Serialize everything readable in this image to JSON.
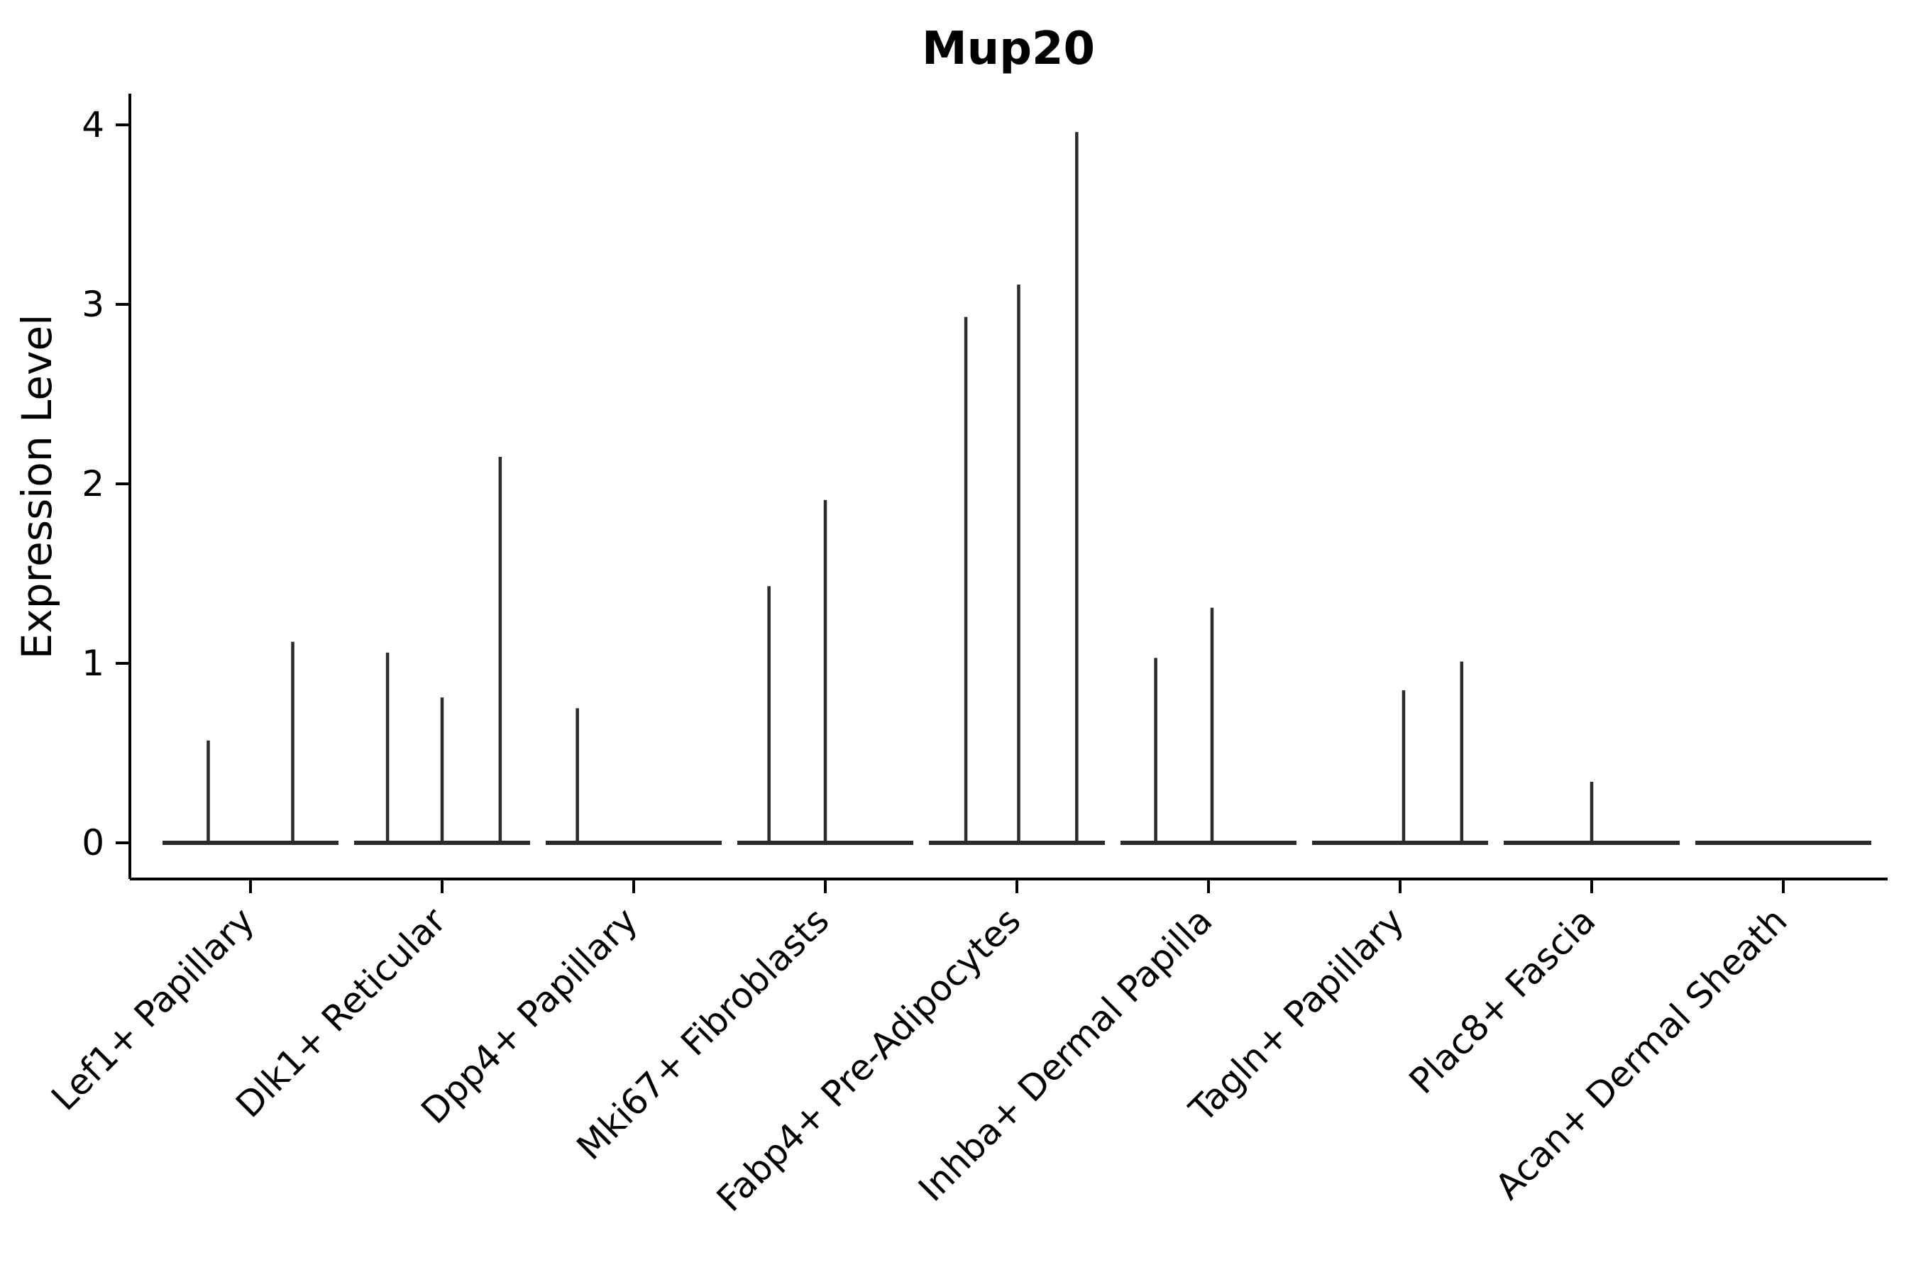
{
  "chart_data": {
    "type": "violin",
    "title": "Mup20",
    "xlabel": "",
    "ylabel": "Expression Level",
    "yticks": [
      0,
      1,
      2,
      3,
      4
    ],
    "ylim": [
      -0.2,
      4.17
    ],
    "grid": false,
    "legend": "none",
    "categories": [
      "Lef1+ Papillary",
      "Dlk1+ Reticular",
      "Dpp4+ Papillary",
      "Mki67+ Fibroblasts",
      "Fabp4+ Pre-Adipocytes",
      "Inhba+ Dermal Papilla",
      "Tagln+ Papillary",
      "Plac8+ Fascia",
      "Acan+ Dermal Sheath"
    ],
    "description": "Violin plot of Mup20 expression; violins are collapsed to a flat line at 0 with thin vertical spikes for the few expressing cells.",
    "baseline_value": 0,
    "violins": [
      {
        "category": "Lef1+ Papillary",
        "spikes": [
          {
            "pos": 0.26,
            "value": 0.57
          },
          {
            "pos": 0.74,
            "value": 1.12
          }
        ]
      },
      {
        "category": "Dlk1+ Reticular",
        "spikes": [
          {
            "pos": 0.19,
            "value": 1.06
          },
          {
            "pos": 0.5,
            "value": 0.81
          },
          {
            "pos": 0.83,
            "value": 2.15
          }
        ]
      },
      {
        "category": "Dpp4+ Papillary",
        "spikes": [
          {
            "pos": 0.18,
            "value": 0.75
          }
        ]
      },
      {
        "category": "Mki67+ Fibroblasts",
        "spikes": [
          {
            "pos": 0.18,
            "value": 1.43
          },
          {
            "pos": 0.5,
            "value": 1.91
          }
        ]
      },
      {
        "category": "Fabp4+ Pre-Adipocytes",
        "spikes": [
          {
            "pos": 0.21,
            "value": 2.93
          },
          {
            "pos": 0.51,
            "value": 3.11
          },
          {
            "pos": 0.84,
            "value": 3.96
          }
        ]
      },
      {
        "category": "Inhba+ Dermal Papilla",
        "spikes": [
          {
            "pos": 0.2,
            "value": 1.03
          },
          {
            "pos": 0.52,
            "value": 1.31
          }
        ]
      },
      {
        "category": "Tagln+ Papillary",
        "spikes": [
          {
            "pos": 0.52,
            "value": 0.85
          },
          {
            "pos": 0.85,
            "value": 1.01
          }
        ]
      },
      {
        "category": "Plac8+ Fascia",
        "spikes": [
          {
            "pos": 0.5,
            "value": 0.34
          }
        ]
      },
      {
        "category": "Acan+ Dermal Sheath",
        "spikes": []
      }
    ],
    "colors": {
      "violin": "#2b2b2b",
      "axis": "#000000",
      "text": "#000000",
      "background": "#ffffff"
    }
  }
}
